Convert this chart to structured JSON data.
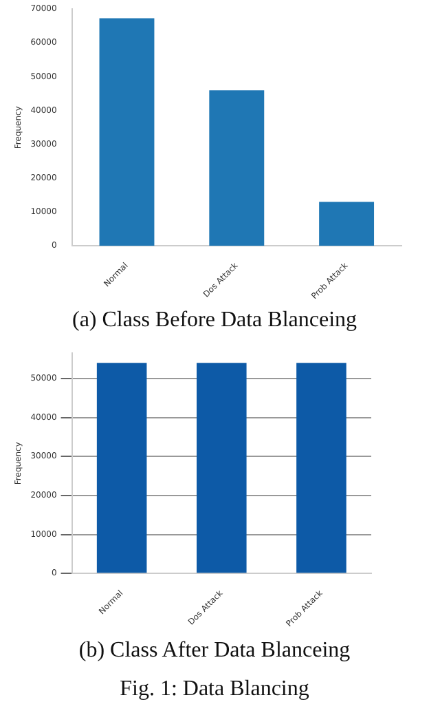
{
  "chart_data": [
    {
      "type": "bar",
      "title": "(a) Class Before Data Blanceing",
      "ylabel": "Frequency",
      "categories": [
        "Normal",
        "Dos Attack",
        "Prob Attack"
      ],
      "values": [
        67300,
        46000,
        13000
      ],
      "color": "#1f77b4",
      "ylim": [
        0,
        70000
      ],
      "yticks": [
        0,
        10000,
        20000,
        30000,
        40000,
        50000,
        60000,
        70000
      ],
      "grid": false,
      "legend": false
    },
    {
      "type": "bar",
      "title": "(b) Class After Data Blanceing",
      "ylabel": "Frequency",
      "categories": [
        "Normal",
        "Dos Attack",
        "Prob Attack"
      ],
      "values": [
        54000,
        54000,
        54000
      ],
      "color": "#0d5aa7",
      "ylim": [
        0,
        56500
      ],
      "yticks": [
        0,
        10000,
        20000,
        30000,
        40000,
        50000
      ],
      "grid": "y",
      "legend": false,
      "annotations": [
        "Fig. 1: Data Blancing"
      ]
    }
  ]
}
